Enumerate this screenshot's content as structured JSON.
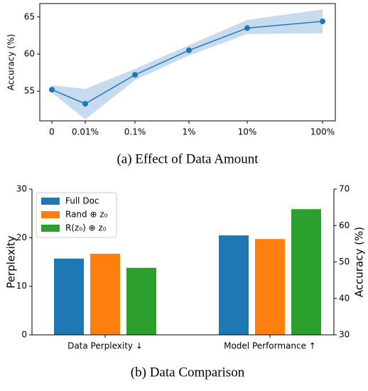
{
  "chart_data": [
    {
      "type": "line",
      "caption": "(a)  Effect of Data Amount",
      "ylabel": "Accuracy (%)",
      "categories": [
        "0",
        "0.01%",
        "0.1%",
        "1%",
        "10%",
        "100%"
      ],
      "series": [
        {
          "color": "#1f77b4",
          "values": [
            55.2,
            53.3,
            57.2,
            60.5,
            63.5,
            64.4
          ],
          "band_lower": [
            54.8,
            51.2,
            56.5,
            59.8,
            62.7,
            62.8
          ],
          "band_upper": [
            55.8,
            55.3,
            58.0,
            61.2,
            64.6,
            66.0
          ],
          "band_color": "#c6dcee"
        }
      ],
      "ylim": [
        51,
        66.8
      ],
      "yticks": [
        55,
        60,
        65
      ],
      "grid": false
    },
    {
      "type": "bar",
      "caption": "(b)  Data Comparison",
      "ylabel": "Perplexity",
      "y2label": "Accuracy (%)",
      "categories": [
        "Data Perplexity ↓",
        "Model Performance ↑"
      ],
      "category_axes": [
        "y",
        "y2"
      ],
      "series": [
        {
          "name": "Full Doc",
          "color": "#1f77b4",
          "values": [
            15.7,
            57.3
          ]
        },
        {
          "name": "Rand ⊕ z₀",
          "color": "#ff7f0e",
          "values": [
            16.7,
            56.3
          ]
        },
        {
          "name": "R(z₀) ⊕ z₀",
          "color": "#2ca02c",
          "values": [
            13.8,
            64.5
          ]
        }
      ],
      "ylim": [
        0,
        30
      ],
      "yticks": [
        0,
        10,
        20,
        30
      ],
      "y2lim": [
        30,
        70
      ],
      "y2ticks": [
        30,
        40,
        50,
        60,
        70
      ],
      "legend": "upper left",
      "grid": false
    }
  ]
}
